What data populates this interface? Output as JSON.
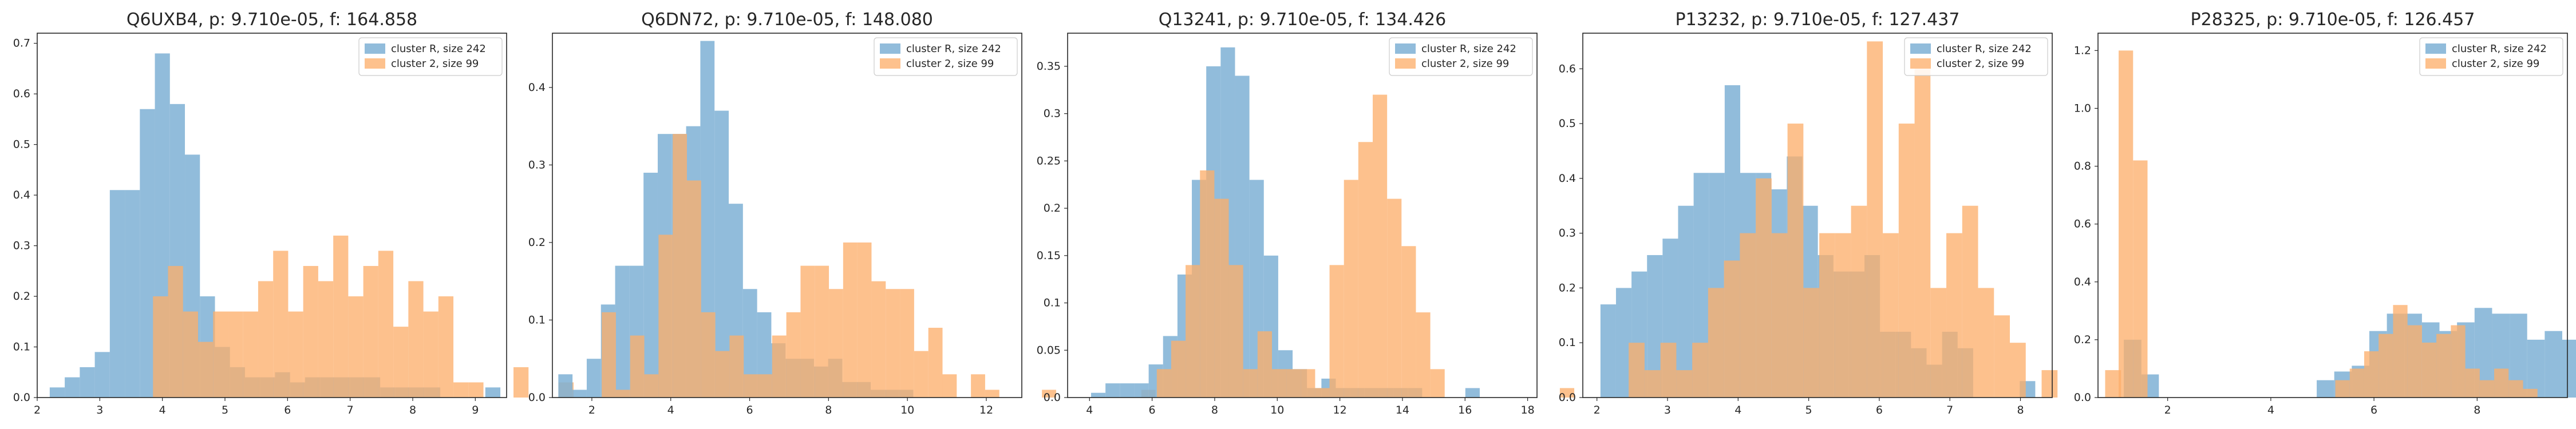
{
  "colors": {
    "series_a": "#7eb0d5",
    "series_b": "#fdae6b",
    "axis": "#262626"
  },
  "chart_data": [
    {
      "type": "histogram",
      "title": "Q6UXB4, p: 9.710e-05, f: 164.858",
      "xlim": [
        2.0,
        9.5
      ],
      "ylim": [
        0,
        0.72
      ],
      "xticks": [
        2,
        3,
        4,
        5,
        6,
        7,
        8,
        9
      ],
      "yticks": [
        0.0,
        0.1,
        0.2,
        0.3,
        0.4,
        0.5,
        0.6,
        0.7
      ],
      "legend_position": "top-right",
      "series": [
        {
          "name": "cluster R, size 242",
          "bin_start": 2.2,
          "bin_width": 0.24,
          "values": [
            0.02,
            0.04,
            0.06,
            0.09,
            0.41,
            0.41,
            0.57,
            0.68,
            0.58,
            0.48,
            0.2,
            0.1,
            0.06,
            0.04,
            0.04,
            0.05,
            0.03,
            0.04,
            0.04,
            0.04,
            0.04,
            0.04,
            0.02,
            0.02,
            0.02,
            0.02,
            0,
            0,
            0,
            0.02
          ]
        },
        {
          "name": "cluster 2, size 99",
          "bin_start": 3.85,
          "bin_width": 0.24,
          "values": [
            0.2,
            0.26,
            0.17,
            0.11,
            0.17,
            0.17,
            0.17,
            0.23,
            0.29,
            0.17,
            0.26,
            0.23,
            0.32,
            0.2,
            0.26,
            0.29,
            0.14,
            0.23,
            0.17,
            0.2,
            0.03,
            0.03,
            0,
            0,
            0.06,
            0,
            0,
            0.03
          ]
        }
      ]
    },
    {
      "type": "histogram",
      "title": "Q6DN72, p: 9.710e-05, f: 148.080",
      "xlim": [
        1.0,
        12.9
      ],
      "ylim": [
        0,
        0.47
      ],
      "xticks": [
        2,
        4,
        6,
        8,
        10,
        12
      ],
      "yticks": [
        0.0,
        0.1,
        0.2,
        0.3,
        0.4
      ],
      "legend_position": "top-right",
      "series": [
        {
          "name": "cluster R, size 242",
          "bin_start": 1.15,
          "bin_width": 0.36,
          "values": [
            0.03,
            0.01,
            0.05,
            0.12,
            0.17,
            0.17,
            0.29,
            0.34,
            0.34,
            0.35,
            0.46,
            0.37,
            0.25,
            0.14,
            0.11,
            0.07,
            0.05,
            0.05,
            0.04,
            0.05,
            0.02,
            0.02,
            0.01,
            0.01,
            0.01
          ]
        },
        {
          "name": "cluster 2, size 99",
          "bin_start": 2.25,
          "bin_width": 0.36,
          "values": [
            0.11,
            0.01,
            0.08,
            0.03,
            0.21,
            0.34,
            0.28,
            0.11,
            0.06,
            0.08,
            0.03,
            0.03,
            0.08,
            0.11,
            0.17,
            0.17,
            0.14,
            0.2,
            0.2,
            0.15,
            0.14,
            0.14,
            0.06,
            0.09,
            0.03,
            0,
            0.03,
            0.01,
            0,
            0,
            0,
            0.01,
            0,
            0,
            0,
            0,
            0,
            0,
            0.01
          ]
        }
      ]
    },
    {
      "type": "histogram",
      "title": "Q13241, p: 9.710e-05, f: 134.426",
      "xlim": [
        3.3,
        18.3
      ],
      "ylim": [
        0,
        0.385
      ],
      "xticks": [
        4,
        6,
        8,
        10,
        12,
        14,
        16,
        18
      ],
      "yticks": [
        0.0,
        0.05,
        0.1,
        0.15,
        0.2,
        0.25,
        0.3,
        0.35
      ],
      "legend_position": "top-right",
      "series": [
        {
          "name": "cluster R, size 242",
          "bin_start": 4.05,
          "bin_width": 0.46,
          "values": [
            0.005,
            0.015,
            0.015,
            0.015,
            0.035,
            0.065,
            0.13,
            0.23,
            0.35,
            0.37,
            0.34,
            0.23,
            0.15,
            0.05,
            0.03,
            0.01,
            0.02,
            0.01,
            0.01,
            0.01,
            0.01,
            0.01,
            0.01,
            0,
            0,
            0,
            0.01
          ]
        },
        {
          "name": "cluster 2, size 99",
          "bin_start": 6.15,
          "bin_width": 0.46,
          "values": [
            0.03,
            0.06,
            0.14,
            0.24,
            0.21,
            0.14,
            0.03,
            0.07,
            0.03,
            0.03,
            0.03,
            0.01,
            0.14,
            0.23,
            0.27,
            0.32,
            0.21,
            0.16,
            0.09,
            0.03,
            0,
            0,
            0,
            0,
            0,
            0,
            0,
            0,
            0.01
          ]
        }
      ]
    },
    {
      "type": "histogram",
      "title": "P13232, p: 9.710e-05, f: 127.437",
      "xlim": [
        1.8,
        8.45
      ],
      "ylim": [
        0,
        0.665
      ],
      "xticks": [
        2,
        3,
        4,
        5,
        6,
        7,
        8
      ],
      "yticks": [
        0.0,
        0.1,
        0.2,
        0.3,
        0.4,
        0.5,
        0.6
      ],
      "legend_position": "top-right",
      "series": [
        {
          "name": "cluster R, size 242",
          "bin_start": 2.05,
          "bin_width": 0.22,
          "values": [
            0.17,
            0.2,
            0.23,
            0.26,
            0.29,
            0.35,
            0.41,
            0.41,
            0.57,
            0.41,
            0.41,
            0.38,
            0.44,
            0.35,
            0.26,
            0.23,
            0.23,
            0.26,
            0.12,
            0.12,
            0.09,
            0.06,
            0.12,
            0.09,
            0,
            0,
            0,
            0.03
          ]
        },
        {
          "name": "cluster 2, size 99",
          "bin_start": 2.45,
          "bin_width": 0.225,
          "values": [
            0.1,
            0.05,
            0.1,
            0.05,
            0.1,
            0.2,
            0.25,
            0.3,
            0.4,
            0.3,
            0.5,
            0.2,
            0.3,
            0.3,
            0.35,
            0.65,
            0.3,
            0.5,
            0.6,
            0.2,
            0.3,
            0.35,
            0.2,
            0.15,
            0.1,
            0,
            0.05,
            0,
            0,
            0,
            0.05
          ]
        }
      ]
    },
    {
      "type": "histogram",
      "title": "P28325, p: 9.710e-05, f: 126.457",
      "xlim": [
        0.65,
        9.75
      ],
      "ylim": [
        0,
        1.26
      ],
      "xticks": [
        2,
        4,
        6,
        8
      ],
      "yticks": [
        0.0,
        0.2,
        0.4,
        0.6,
        0.8,
        1.0,
        1.2
      ],
      "legend_position": "top-right",
      "series": [
        {
          "name": "cluster R, size 242",
          "bin_start": 1.15,
          "bin_width": 0.34,
          "values": [
            0.2,
            0.08,
            0,
            0,
            0,
            0,
            0,
            0,
            0,
            0,
            0,
            0.06,
            0.09,
            0.11,
            0.23,
            0.29,
            0.29,
            0.26,
            0.23,
            0.26,
            0.31,
            0.29,
            0.29,
            0.2,
            0.23,
            0.2,
            0.11,
            0.09,
            0.06,
            0.03,
            0.03,
            0.03,
            0.03
          ]
        },
        {
          "name": "cluster 2, size 99",
          "bin_start": 1.05,
          "bin_width": 0.28,
          "values": [
            1.2,
            0.82,
            0,
            0,
            0,
            0,
            0,
            0,
            0,
            0,
            0,
            0,
            0,
            0,
            0,
            0.06,
            0.1,
            0.16,
            0.22,
            0.32,
            0.25,
            0.19,
            0.22,
            0.25,
            0.1,
            0.06,
            0.1,
            0.06,
            0.03,
            0,
            0,
            0,
            0,
            0,
            0.03
          ]
        }
      ]
    }
  ]
}
